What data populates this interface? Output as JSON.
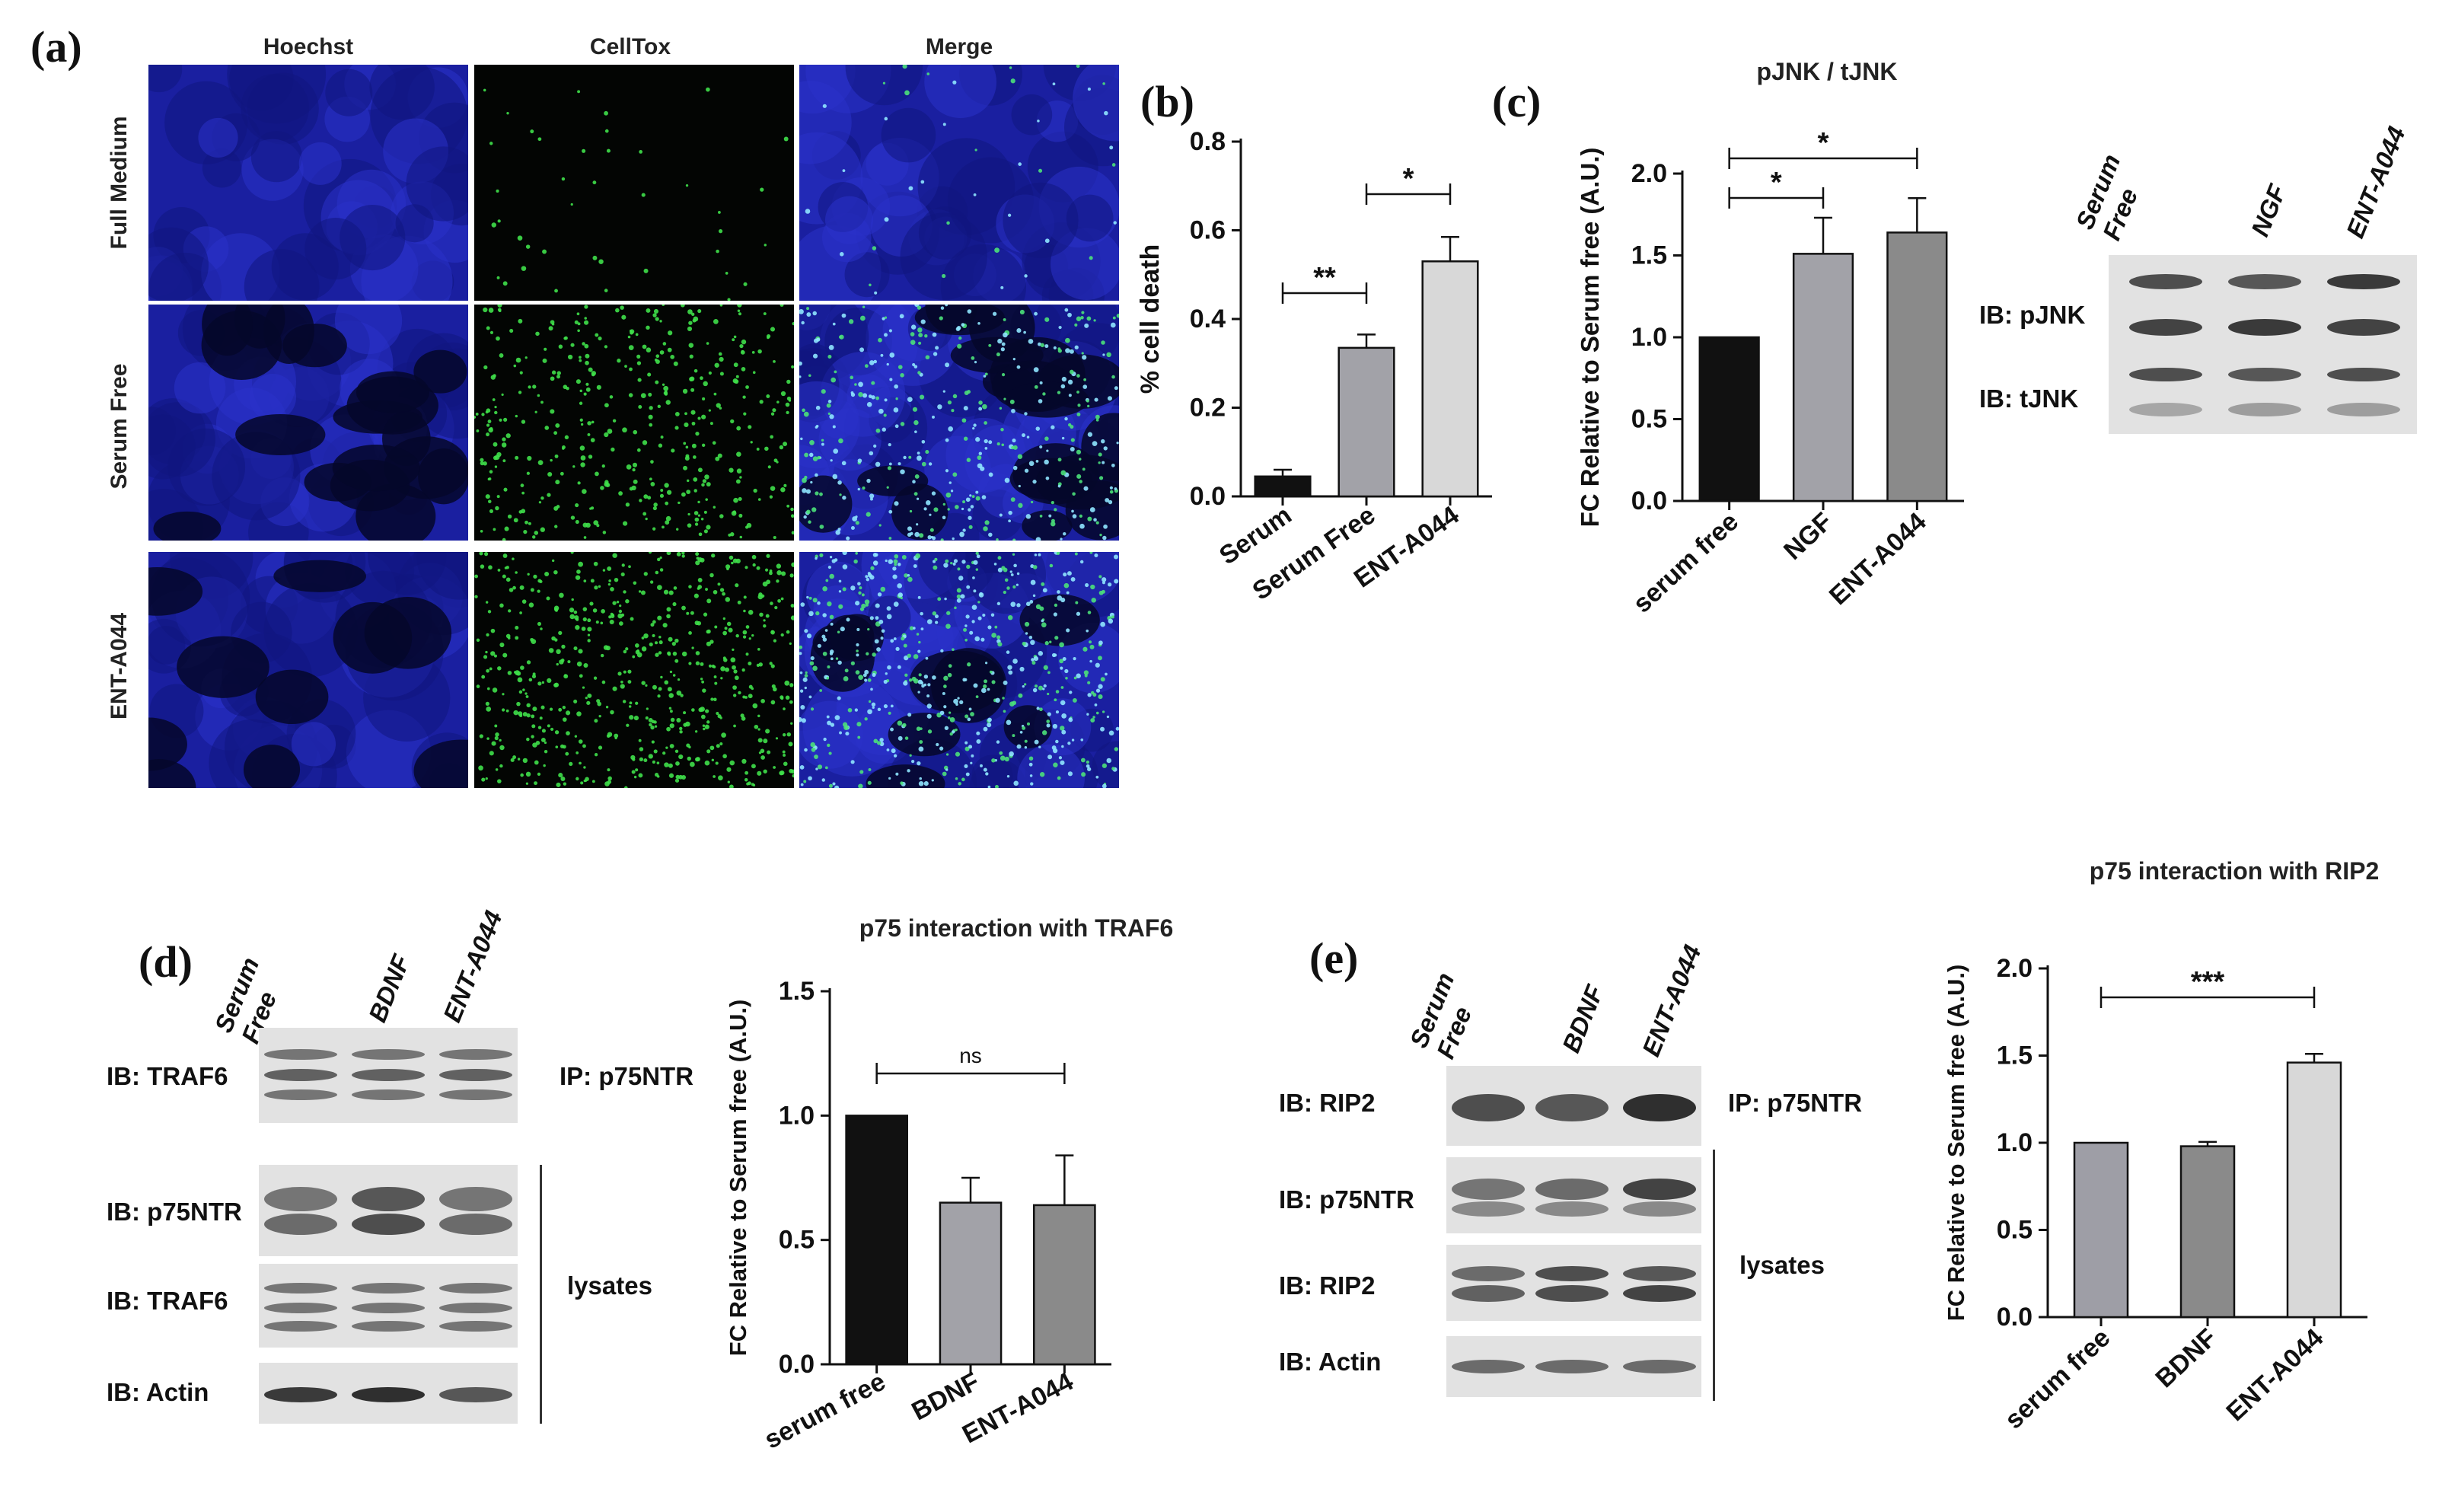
{
  "panels": {
    "a": {
      "label": "(a)",
      "columns": [
        "Hoechst",
        "CellTox",
        "Merge"
      ],
      "rows": [
        "Full Medium",
        "Serum Free",
        "ENT-A044"
      ]
    },
    "b": {
      "label": "(b)"
    },
    "c": {
      "label": "(c)",
      "blot_lanes": [
        "Serum\nFree",
        "NGF",
        "ENT-A044"
      ],
      "blot_rows": [
        "IB: pJNK",
        "IB: tJNK"
      ]
    },
    "d": {
      "label": "(d)",
      "blot_lanes": [
        "Serum\nFree",
        "BDNF",
        "ENT-A044"
      ],
      "blot_rows": [
        "IB: TRAF6",
        "IB: p75NTR",
        "IB: TRAF6",
        "IB: Actin"
      ],
      "ip_label": "IP: p75NTR",
      "lysates_label": "lysates"
    },
    "e": {
      "label": "(e)",
      "blot_lanes": [
        "Serum\nFree",
        "BDNF",
        "ENT-A044"
      ],
      "blot_rows": [
        "IB: RIP2",
        "IB: p75NTR",
        "IB: RIP2",
        "IB: Actin"
      ],
      "ip_label": "IP: p75NTR",
      "lysates_label": "lysates"
    }
  },
  "chart_data": [
    {
      "id": "b",
      "type": "bar",
      "title": "",
      "ylabel": "% cell death",
      "categories": [
        "Serum",
        "Serum Free",
        "ENT-A044"
      ],
      "values": [
        0.045,
        0.335,
        0.53
      ],
      "errors": [
        0.015,
        0.03,
        0.055
      ],
      "colors": [
        "#111111",
        "#a2a2a8",
        "#d8d8d8"
      ],
      "ylim": [
        0,
        0.8
      ],
      "yticks": [
        "0.0",
        "0.2",
        "0.4",
        "0.6",
        "0.8"
      ],
      "tick_values": [
        0,
        0.2,
        0.4,
        0.6,
        0.8
      ],
      "significance": [
        {
          "from": 0,
          "to": 1,
          "label": "**"
        },
        {
          "from": 1,
          "to": 2,
          "label": "*"
        }
      ]
    },
    {
      "id": "c",
      "type": "bar",
      "title": "pJNK / tJNK",
      "ylabel": "FC Relative to Serum free  (A.U.)",
      "categories": [
        "serum free",
        "NGF",
        "ENT-A044"
      ],
      "values": [
        1.0,
        1.51,
        1.64
      ],
      "errors": [
        0,
        0.22,
        0.21
      ],
      "colors": [
        "#111111",
        "#a2a2a8",
        "#8a8a8a"
      ],
      "ylim": [
        0,
        2.0
      ],
      "yticks": [
        "0.0",
        "0.5",
        "1.0",
        "1.5",
        "2.0"
      ],
      "tick_values": [
        0,
        0.5,
        1.0,
        1.5,
        2.0
      ],
      "significance": [
        {
          "from": 0,
          "to": 1,
          "label": "*"
        },
        {
          "from": 0,
          "to": 2,
          "label": "*"
        }
      ]
    },
    {
      "id": "d",
      "type": "bar",
      "title": "p75 interaction with TRAF6",
      "ylabel": "FC Relative to Serum free (A.U.)",
      "categories": [
        "serum free",
        "BDNF",
        "ENT-A044"
      ],
      "values": [
        1.0,
        0.65,
        0.64
      ],
      "errors": [
        0,
        0.1,
        0.2
      ],
      "colors": [
        "#111111",
        "#a2a2a8",
        "#8a8a8a"
      ],
      "ylim": [
        0,
        1.5
      ],
      "yticks": [
        "0.0",
        "0.5",
        "1.0",
        "1.5"
      ],
      "tick_values": [
        0,
        0.5,
        1.0,
        1.5
      ],
      "significance": [
        {
          "from": 0,
          "to": 2,
          "label": "ns"
        }
      ]
    },
    {
      "id": "e",
      "type": "bar",
      "title": "p75 interaction with RIP2",
      "ylabel": "FC Relative to Serum free (A.U.)",
      "categories": [
        "serum free",
        "BDNF",
        "ENT-A044"
      ],
      "values": [
        1.0,
        0.98,
        1.46
      ],
      "errors": [
        0,
        0.025,
        0.05
      ],
      "colors": [
        "#9e9ea6",
        "#8a8a8a",
        "#d8d8d8"
      ],
      "ylim": [
        0,
        2.0
      ],
      "yticks": [
        "0.0",
        "0.5",
        "1.0",
        "1.5",
        "2.0"
      ],
      "tick_values": [
        0,
        0.5,
        1.0,
        1.5,
        2.0
      ],
      "significance": [
        {
          "from": 0,
          "to": 2,
          "label": "***"
        }
      ]
    }
  ]
}
